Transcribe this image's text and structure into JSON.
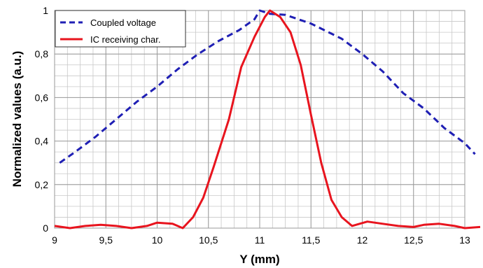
{
  "chart_data": {
    "type": "line",
    "title": "",
    "xlabel": "Y (mm)",
    "ylabel": "Normalized values (a.u.)",
    "xlim": [
      9,
      13
    ],
    "ylim": [
      0,
      1
    ],
    "x_ticks": [
      9,
      9.5,
      10,
      10.5,
      11,
      11.5,
      12,
      12.5,
      13
    ],
    "x_tick_labels": [
      "9",
      "9,5",
      "10",
      "10,5",
      "11",
      "11,5",
      "12",
      "12,5",
      "13"
    ],
    "y_ticks": [
      0,
      0.2,
      0.4,
      0.6,
      0.8,
      1
    ],
    "y_tick_labels": [
      "0",
      "0,2",
      "0,4",
      "0,6",
      "0,8",
      "1"
    ],
    "grid": true,
    "legend_position": "top-left",
    "series": [
      {
        "name": "Coupled voltage",
        "color": "#1f1fb4",
        "style": "dashed",
        "points": [
          [
            9.05,
            0.3
          ],
          [
            9.2,
            0.35
          ],
          [
            9.4,
            0.42
          ],
          [
            9.6,
            0.5
          ],
          [
            9.8,
            0.58
          ],
          [
            10.0,
            0.65
          ],
          [
            10.2,
            0.73
          ],
          [
            10.4,
            0.8
          ],
          [
            10.6,
            0.86
          ],
          [
            10.8,
            0.91
          ],
          [
            10.95,
            0.96
          ],
          [
            11.0,
            1.0
          ],
          [
            11.1,
            0.985
          ],
          [
            11.25,
            0.98
          ],
          [
            11.5,
            0.94
          ],
          [
            11.8,
            0.87
          ],
          [
            12.0,
            0.8
          ],
          [
            12.2,
            0.72
          ],
          [
            12.4,
            0.62
          ],
          [
            12.6,
            0.55
          ],
          [
            12.8,
            0.46
          ],
          [
            13.0,
            0.39
          ],
          [
            13.1,
            0.34
          ]
        ]
      },
      {
        "name": "IC receiving char.",
        "color": "#e8141e",
        "style": "solid",
        "points": [
          [
            9.0,
            0.01
          ],
          [
            9.15,
            0.0
          ],
          [
            9.3,
            0.01
          ],
          [
            9.45,
            0.015
          ],
          [
            9.6,
            0.01
          ],
          [
            9.75,
            0.0
          ],
          [
            9.9,
            0.01
          ],
          [
            10.0,
            0.025
          ],
          [
            10.15,
            0.02
          ],
          [
            10.25,
            0.0
          ],
          [
            10.35,
            0.05
          ],
          [
            10.45,
            0.14
          ],
          [
            10.55,
            0.28
          ],
          [
            10.7,
            0.5
          ],
          [
            10.82,
            0.74
          ],
          [
            10.95,
            0.88
          ],
          [
            11.05,
            0.97
          ],
          [
            11.1,
            1.0
          ],
          [
            11.2,
            0.97
          ],
          [
            11.3,
            0.9
          ],
          [
            11.4,
            0.75
          ],
          [
            11.5,
            0.52
          ],
          [
            11.6,
            0.3
          ],
          [
            11.7,
            0.13
          ],
          [
            11.8,
            0.05
          ],
          [
            11.9,
            0.01
          ],
          [
            12.05,
            0.03
          ],
          [
            12.2,
            0.02
          ],
          [
            12.35,
            0.01
          ],
          [
            12.5,
            0.005
          ],
          [
            12.6,
            0.015
          ],
          [
            12.75,
            0.02
          ],
          [
            12.9,
            0.01
          ],
          [
            13.0,
            0.0
          ],
          [
            13.15,
            0.005
          ]
        ]
      }
    ]
  }
}
